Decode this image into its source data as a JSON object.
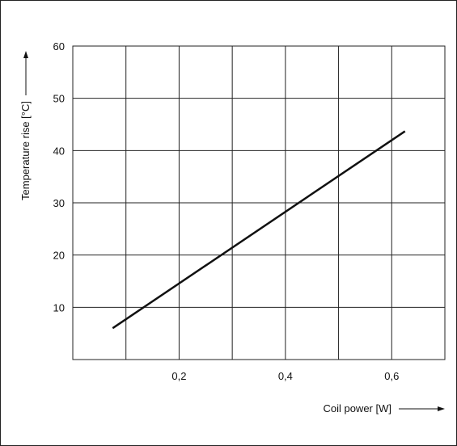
{
  "chart_data": {
    "type": "line",
    "xlabel": "Coil power [W]",
    "ylabel": "Temperature rise [°C]",
    "xlim": [
      0.0,
      0.7
    ],
    "ylim": [
      0,
      60
    ],
    "x_ticks": [
      0.1,
      0.2,
      0.3,
      0.4,
      0.5,
      0.6
    ],
    "x_tick_labels": [
      "",
      "0,2",
      "",
      "0,4",
      "",
      "0,6"
    ],
    "y_ticks": [
      10,
      20,
      30,
      40,
      50,
      60
    ],
    "y_tick_labels": [
      "10",
      "20",
      "30",
      "40",
      "50",
      "60"
    ],
    "grid": true,
    "series": [
      {
        "x": [
          0.075,
          0.625
        ],
        "y": [
          6,
          43.7
        ]
      }
    ],
    "colors": {
      "line": "#111111",
      "grid": "#222222",
      "frame": "#222222"
    }
  }
}
